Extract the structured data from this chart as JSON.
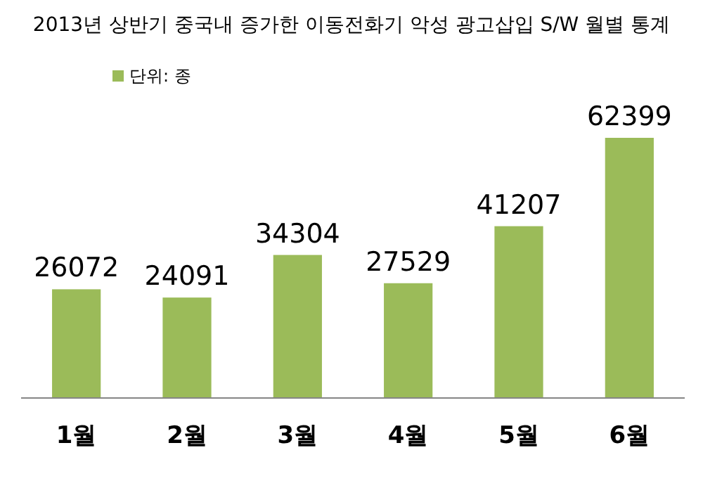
{
  "chart_data": {
    "type": "bar",
    "title": "2013년 상반기 중국내 증가한 이동전화기 악성 광고삽입 S/W 월별 통계",
    "categories": [
      "1월",
      "2월",
      "3월",
      "4월",
      "5월",
      "6월"
    ],
    "series": [
      {
        "name": "단위: 종",
        "color": "#9bbb59",
        "values": [
          26072,
          24091,
          34304,
          27529,
          41207,
          62399
        ]
      }
    ],
    "data_labels": true,
    "legend": "top left"
  }
}
